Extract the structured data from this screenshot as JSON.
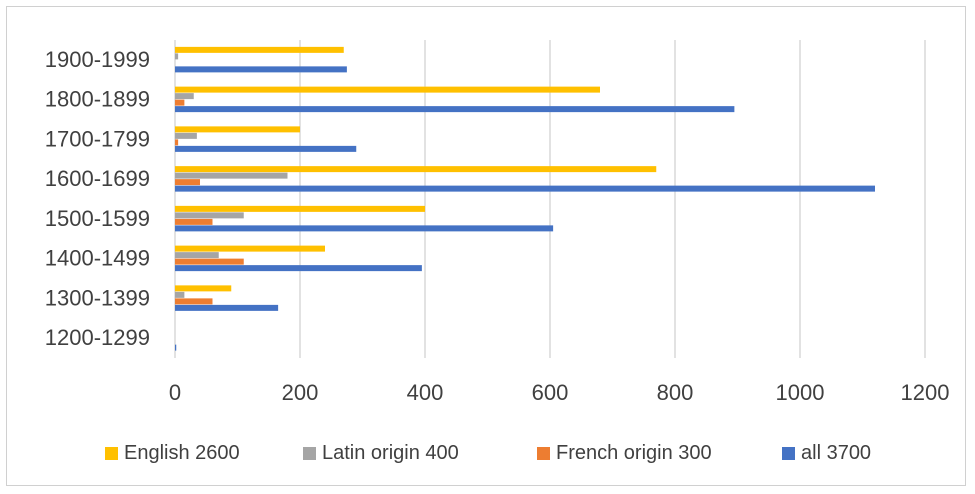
{
  "chart_data": {
    "type": "bar",
    "orientation": "horizontal",
    "categories": [
      "1200-1299",
      "1300-1399",
      "1400-1499",
      "1500-1599",
      "1600-1699",
      "1700-1799",
      "1800-1899",
      "1900-1999"
    ],
    "series": [
      {
        "name": "English 2600",
        "color": "#FFC000",
        "values": [
          0,
          90,
          240,
          400,
          770,
          200,
          680,
          270
        ]
      },
      {
        "name": "Latin origin 400",
        "color": "#A5A5A5",
        "values": [
          0,
          15,
          70,
          110,
          180,
          35,
          30,
          5
        ]
      },
      {
        "name": "French origin 300",
        "color": "#ED7D31",
        "values": [
          0,
          60,
          110,
          60,
          40,
          5,
          15,
          0
        ]
      },
      {
        "name": "all 3700",
        "color": "#4472C4",
        "values": [
          2,
          165,
          395,
          605,
          1120,
          290,
          895,
          275
        ]
      }
    ],
    "xlim": [
      0,
      1200
    ],
    "xticks": [
      "0",
      "200",
      "400",
      "600",
      "800",
      "1000",
      "1200"
    ],
    "grid": true,
    "legend_position": "bottom",
    "title": "",
    "xlabel": "",
    "ylabel": ""
  }
}
